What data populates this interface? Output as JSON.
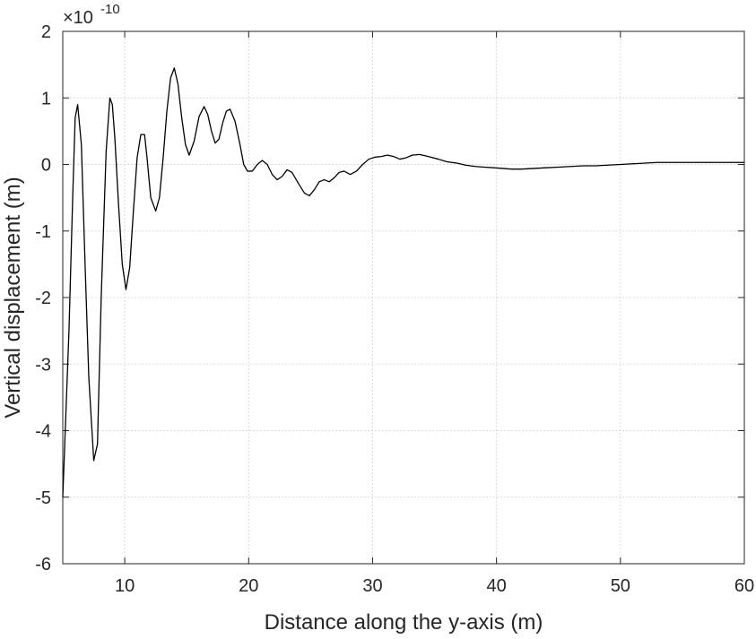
{
  "chart_data": {
    "type": "line",
    "title": "",
    "xlabel": "Distance along the y-axis (m)",
    "ylabel": "Vertical displacement (m)",
    "y_exponent_label": "×10",
    "y_exponent_power": "-10",
    "xlim": [
      5,
      60
    ],
    "ylim": [
      -6,
      2
    ],
    "x_ticks": [
      10,
      20,
      30,
      40,
      50,
      60
    ],
    "y_ticks": [
      -6,
      -5,
      -4,
      -3,
      -2,
      -1,
      0,
      1,
      2
    ],
    "grid": true,
    "legend": "none",
    "line_color": "#000000",
    "series": [
      {
        "x": [
          5.0,
          5.5,
          5.8,
          6.0,
          6.2,
          6.5,
          6.8,
          7.1,
          7.5,
          7.8,
          8.1,
          8.5,
          8.8,
          9.0,
          9.2,
          9.5,
          9.8,
          10.1,
          10.4,
          10.7,
          11.0,
          11.3,
          11.6,
          11.8,
          12.1,
          12.5,
          12.8,
          13.1,
          13.4,
          13.7,
          14.0,
          14.3,
          14.6,
          14.9,
          15.2,
          15.6,
          16.0,
          16.4,
          16.7,
          17.0,
          17.3,
          17.6,
          17.9,
          18.2,
          18.5,
          18.9,
          19.3,
          19.6,
          19.9,
          20.3,
          20.7,
          21.1,
          21.5,
          21.9,
          22.3,
          22.7,
          23.1,
          23.5,
          24.0,
          24.5,
          24.9,
          25.3,
          25.7,
          26.1,
          26.5,
          26.9,
          27.3,
          27.7,
          28.2,
          28.7,
          29.2,
          29.7,
          30.2,
          30.7,
          31.2,
          31.7,
          32.2,
          32.7,
          33.2,
          33.8,
          34.5,
          35.3,
          36.0,
          36.8,
          37.5,
          38.3,
          39.0,
          39.8,
          40.5,
          41.2,
          42.0,
          43.0,
          44.0,
          45.0,
          46.0,
          47.0,
          48.0,
          49.0,
          50.0,
          51.0,
          52.0,
          53.0,
          54.0,
          55.0,
          56.0,
          57.0,
          58.0,
          59.0,
          60.0
        ],
        "y": [
          -5.0,
          -2.5,
          -0.5,
          0.7,
          0.9,
          0.3,
          -1.5,
          -3.2,
          -4.45,
          -4.2,
          -2.0,
          0.2,
          1.0,
          0.9,
          0.4,
          -0.6,
          -1.5,
          -1.88,
          -1.55,
          -0.7,
          0.1,
          0.45,
          0.45,
          0.1,
          -0.5,
          -0.7,
          -0.5,
          0.1,
          0.8,
          1.3,
          1.45,
          1.2,
          0.7,
          0.3,
          0.14,
          0.35,
          0.72,
          0.87,
          0.75,
          0.5,
          0.32,
          0.38,
          0.62,
          0.8,
          0.83,
          0.65,
          0.3,
          0.0,
          -0.1,
          -0.1,
          0.0,
          0.06,
          0.0,
          -0.15,
          -0.23,
          -0.18,
          -0.08,
          -0.12,
          -0.28,
          -0.43,
          -0.47,
          -0.38,
          -0.26,
          -0.23,
          -0.26,
          -0.2,
          -0.12,
          -0.1,
          -0.15,
          -0.1,
          0.0,
          0.08,
          0.11,
          0.12,
          0.14,
          0.12,
          0.08,
          0.1,
          0.14,
          0.15,
          0.12,
          0.08,
          0.04,
          0.02,
          -0.01,
          -0.03,
          -0.04,
          -0.05,
          -0.06,
          -0.07,
          -0.07,
          -0.06,
          -0.05,
          -0.04,
          -0.03,
          -0.02,
          -0.02,
          -0.01,
          0.0,
          0.01,
          0.02,
          0.03,
          0.03,
          0.03,
          0.03,
          0.03,
          0.03,
          0.03,
          0.03
        ]
      }
    ]
  }
}
